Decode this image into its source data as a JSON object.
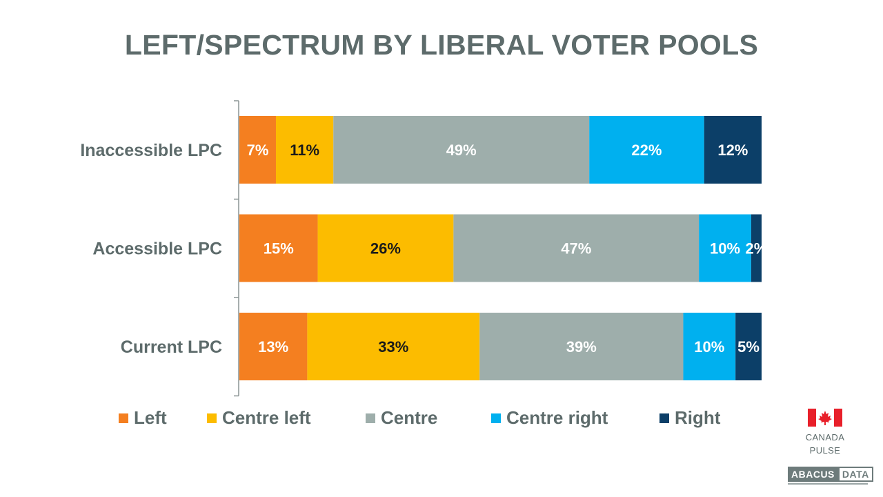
{
  "page": {
    "title": "LEFT/SPECTRUM BY LIBERAL VOTER POOLS",
    "pulse_label_1": "CANADA",
    "pulse_label_2": "PULSE",
    "brand_part_1": "ABACUS",
    "brand_part_2": "DATA"
  },
  "chart_data": {
    "type": "bar",
    "orientation": "horizontal",
    "stacked": true,
    "title": "LEFT/SPECTRUM BY LIBERAL VOTER POOLS",
    "xlabel": "",
    "ylabel": "",
    "xlim": [
      0,
      100
    ],
    "grid": false,
    "legend_position": "bottom",
    "categories": [
      "Inaccessible LPC",
      "Accessible LPC",
      "Current LPC"
    ],
    "series": [
      {
        "name": "Left",
        "color": "#f47f20",
        "label_color": "#ffffff",
        "values": [
          7,
          15,
          13
        ]
      },
      {
        "name": "Centre left",
        "color": "#fcbc00",
        "label_color": "#1a1a1a",
        "values": [
          11,
          26,
          33
        ]
      },
      {
        "name": "Centre",
        "color": "#9eaeab",
        "label_color": "#ffffff",
        "values": [
          49,
          47,
          39
        ]
      },
      {
        "name": "Centre right",
        "color": "#00b0ef",
        "label_color": "#ffffff",
        "values": [
          22,
          10,
          10
        ]
      },
      {
        "name": "Right",
        "color": "#0c3f68",
        "label_color": "#ffffff",
        "values": [
          12,
          2,
          5
        ]
      }
    ]
  }
}
